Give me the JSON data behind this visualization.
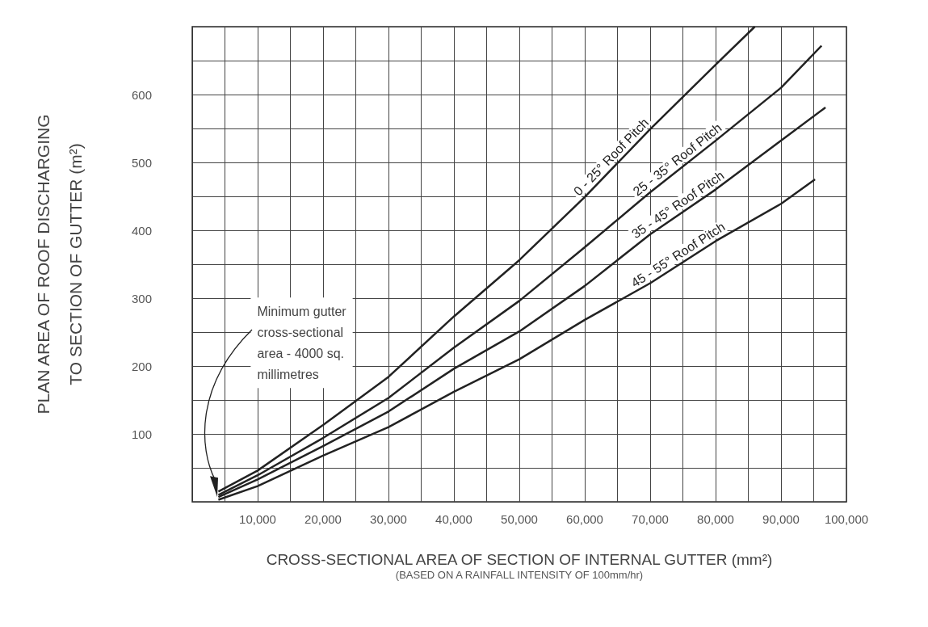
{
  "chart_data": {
    "type": "line",
    "xlabel": "CROSS-SECTIONAL AREA OF SECTION OF INTERNAL GUTTER (mm²)",
    "ylabel": "PLAN AREA OF ROOF DISCHARGING\nTO SECTION OF GUTTER (m²)",
    "annotations": [
      "(BASED ON A RAINFALL INTENSITY OF 100mm/hr)",
      "Minimum gutter\ncross-sectional\narea - 4000 sq.\nmillimetres"
    ],
    "xlim": [
      0,
      100000
    ],
    "ylim": [
      0,
      700
    ],
    "xticks": [
      {
        "value": 0,
        "label": null
      },
      {
        "value": 5000,
        "label": null
      },
      {
        "value": 10000,
        "label": "10,000"
      },
      {
        "value": 15000,
        "label": null
      },
      {
        "value": 20000,
        "label": "20,000"
      },
      {
        "value": 25000,
        "label": null
      },
      {
        "value": 30000,
        "label": "30,000"
      },
      {
        "value": 35000,
        "label": null
      },
      {
        "value": 40000,
        "label": "40,000"
      },
      {
        "value": 45000,
        "label": null
      },
      {
        "value": 50000,
        "label": "50,000"
      },
      {
        "value": 55000,
        "label": null
      },
      {
        "value": 60000,
        "label": "60,000"
      },
      {
        "value": 65000,
        "label": null
      },
      {
        "value": 70000,
        "label": "70,000"
      },
      {
        "value": 75000,
        "label": null
      },
      {
        "value": 80000,
        "label": "80,000"
      },
      {
        "value": 85000,
        "label": null
      },
      {
        "value": 90000,
        "label": "90,000"
      },
      {
        "value": 95000,
        "label": null
      },
      {
        "value": 100000,
        "label": "100,000"
      }
    ],
    "yticks": [
      {
        "value": 0,
        "label": null
      },
      {
        "value": 50,
        "label": null
      },
      100,
      {
        "value": 150,
        "label": null
      },
      200,
      {
        "value": 250,
        "label": null
      },
      300,
      {
        "value": 350,
        "label": null
      },
      400,
      {
        "value": 450,
        "label": null
      },
      500,
      {
        "value": 550,
        "label": null
      },
      600,
      {
        "value": 650,
        "label": null
      },
      {
        "value": 700,
        "label": null
      }
    ],
    "grid": true,
    "legend": false,
    "line_style": "solid",
    "series": [
      {
        "name": "0 - 25° Roof Pitch",
        "color": "#222222",
        "x": [
          4000,
          10000,
          20000,
          30000,
          40000,
          50000,
          60000,
          70000,
          80000,
          86000
        ],
        "values": [
          15,
          46,
          113,
          184,
          273,
          356,
          449,
          549,
          644,
          700
        ]
      },
      {
        "name": "25 - 35° Roof Pitch",
        "color": "#222222",
        "x": [
          4000,
          10000,
          20000,
          30000,
          40000,
          50000,
          60000,
          70000,
          80000,
          90000,
          96200
        ],
        "values": [
          10,
          39,
          94,
          153,
          227,
          296,
          375,
          456,
          532,
          610,
          672
        ]
      },
      {
        "name": "35 - 45° Roof Pitch",
        "color": "#222222",
        "x": [
          4000,
          10000,
          20000,
          30000,
          40000,
          50000,
          60000,
          70000,
          80000,
          90000,
          96800
        ],
        "values": [
          7,
          33,
          82,
          133,
          196,
          251,
          318,
          394,
          460,
          532,
          581
        ]
      },
      {
        "name": "45 - 55° Roof Pitch",
        "color": "#222222",
        "x": [
          4000,
          10000,
          20000,
          30000,
          40000,
          50000,
          60000,
          70000,
          80000,
          90000,
          95200
        ],
        "values": [
          3,
          23,
          68,
          110,
          162,
          210,
          268,
          322,
          384,
          439,
          475
        ]
      }
    ]
  }
}
